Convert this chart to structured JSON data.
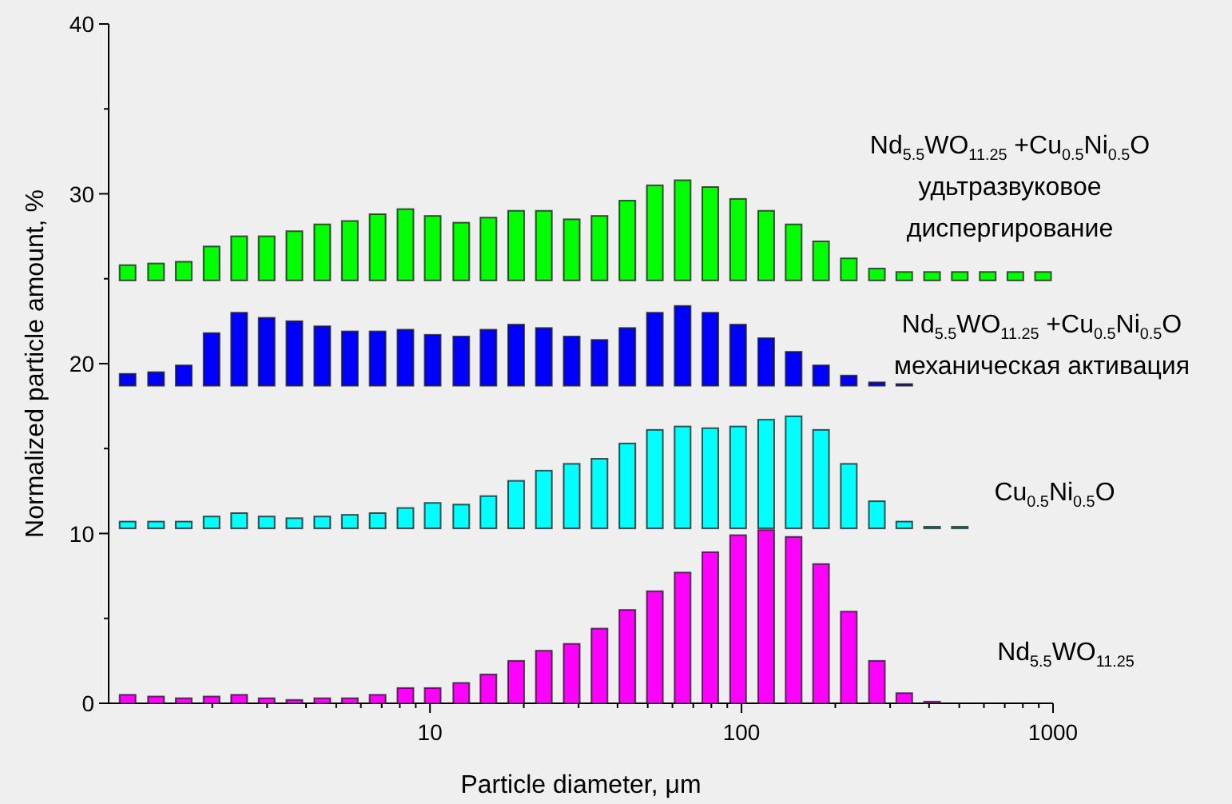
{
  "chart_data": {
    "type": "bar",
    "xlabel": "Particle diameter, μm",
    "ylabel": "Normalized particle amount, %",
    "log": "x",
    "xlim": [
      0.93,
      1000
    ],
    "ylim": [
      0,
      40
    ],
    "xticks": [
      {
        "value": 2,
        "label": null
      },
      {
        "value": 3,
        "label": null
      },
      {
        "value": 4,
        "label": null
      },
      {
        "value": 5,
        "label": null
      },
      {
        "value": 6,
        "label": null
      },
      {
        "value": 7,
        "label": null
      },
      {
        "value": 8,
        "label": null
      },
      {
        "value": 9,
        "label": null
      },
      10,
      {
        "value": 20,
        "label": null
      },
      {
        "value": 30,
        "label": null
      },
      {
        "value": 40,
        "label": null
      },
      {
        "value": 50,
        "label": null
      },
      {
        "value": 60,
        "label": null
      },
      {
        "value": 70,
        "label": null
      },
      {
        "value": 80,
        "label": null
      },
      {
        "value": 90,
        "label": null
      },
      100,
      {
        "value": 200,
        "label": null
      },
      {
        "value": 300,
        "label": null
      },
      {
        "value": 400,
        "label": null
      },
      {
        "value": 500,
        "label": null
      },
      {
        "value": 600,
        "label": null
      },
      {
        "value": 700,
        "label": null
      },
      {
        "value": 800,
        "label": null
      },
      {
        "value": 900,
        "label": null
      },
      1000
    ],
    "yticks": [
      0,
      {
        "value": 5,
        "label": null
      },
      10,
      {
        "value": 15,
        "label": null
      },
      20,
      {
        "value": 25,
        "label": null
      },
      30,
      {
        "value": 35,
        "label": null
      },
      40
    ],
    "grid": false,
    "series": [
      {
        "name": "Nd$_{5.5}$WO$_{11.25}$",
        "color": "#ff00ff",
        "x": [
          1.07,
          1.32,
          1.62,
          1.99,
          2.44,
          2.99,
          3.67,
          4.51,
          5.53,
          6.79,
          8.34,
          10.2,
          12.6,
          15.4,
          18.9,
          23.2,
          28.5,
          35.0,
          43.0,
          52.7,
          64.7,
          79.4,
          97.5,
          120,
          147,
          180,
          221,
          272,
          333,
          409
        ],
        "base": [
          0,
          0,
          0,
          0,
          0,
          0,
          0,
          0,
          0,
          0,
          0,
          0,
          0,
          0,
          0,
          0,
          0,
          0,
          0,
          0,
          0,
          0,
          0,
          0,
          0,
          0,
          0,
          0,
          0,
          0
        ],
        "values": [
          0.5,
          0.4,
          0.3,
          0.4,
          0.5,
          0.3,
          0.2,
          0.3,
          0.3,
          0.5,
          0.9,
          0.9,
          1.2,
          1.7,
          2.5,
          3.1,
          3.5,
          4.4,
          5.5,
          6.6,
          7.7,
          8.9,
          9.9,
          10.2,
          9.8,
          8.2,
          5.4,
          2.5,
          0.6,
          0.1
        ]
      },
      {
        "name": "Cu$_{0.5}$Ni$_{0.5}$O",
        "color": "#00ffff",
        "x": [
          1.07,
          1.32,
          1.62,
          1.99,
          2.44,
          2.99,
          3.67,
          4.51,
          5.53,
          6.79,
          8.34,
          10.2,
          12.6,
          15.4,
          18.9,
          23.2,
          28.5,
          35.0,
          43.0,
          52.7,
          64.7,
          79.4,
          97.5,
          120,
          147,
          180,
          221,
          272,
          333,
          409,
          502
        ],
        "base": [
          10.3,
          10.3,
          10.3,
          10.3,
          10.3,
          10.3,
          10.3,
          10.3,
          10.3,
          10.3,
          10.3,
          10.3,
          10.3,
          10.3,
          10.3,
          10.3,
          10.3,
          10.3,
          10.3,
          10.3,
          10.3,
          10.3,
          10.3,
          10.3,
          10.3,
          10.3,
          10.3,
          10.3,
          10.3,
          10.3,
          10.3
        ],
        "values": [
          0.4,
          0.4,
          0.4,
          0.7,
          0.9,
          0.7,
          0.6,
          0.7,
          0.8,
          0.9,
          1.2,
          1.5,
          1.4,
          1.9,
          2.8,
          3.4,
          3.8,
          4.1,
          5.0,
          5.8,
          6.0,
          5.9,
          6.0,
          6.4,
          6.6,
          5.8,
          3.8,
          1.6,
          0.4,
          0.1,
          0.1
        ]
      },
      {
        "name": "Nd$_{5.5}$WO$_{11.25}$ +Cu$_{0.5}$Ni$_{0.5}$O\nмеханическая активация",
        "color": "#0000ff",
        "x": [
          1.07,
          1.32,
          1.62,
          1.99,
          2.44,
          2.99,
          3.67,
          4.51,
          5.53,
          6.79,
          8.34,
          10.2,
          12.6,
          15.4,
          18.9,
          23.2,
          28.5,
          35.0,
          43.0,
          52.7,
          64.7,
          79.4,
          97.5,
          120,
          147,
          180,
          221,
          272,
          333
        ],
        "base": [
          18.7,
          18.7,
          18.7,
          18.7,
          18.7,
          18.7,
          18.7,
          18.7,
          18.7,
          18.7,
          18.7,
          18.7,
          18.7,
          18.7,
          18.7,
          18.7,
          18.7,
          18.7,
          18.7,
          18.7,
          18.7,
          18.7,
          18.7,
          18.7,
          18.7,
          18.7,
          18.7,
          18.7,
          18.7
        ],
        "values": [
          0.7,
          0.8,
          1.2,
          3.1,
          4.3,
          4.0,
          3.8,
          3.5,
          3.2,
          3.2,
          3.3,
          3.0,
          2.9,
          3.3,
          3.6,
          3.4,
          2.9,
          2.7,
          3.4,
          4.3,
          4.7,
          4.3,
          3.6,
          2.8,
          2.0,
          1.2,
          0.6,
          0.2,
          0.1
        ]
      },
      {
        "name": "Nd$_{5.5}$WO$_{11.25}$ +Cu$_{0.5}$Ni$_{0.5}$O\nудьтразвуковое\nдиспергирование",
        "color": "#00ff00",
        "x": [
          1.07,
          1.32,
          1.62,
          1.99,
          2.44,
          2.99,
          3.67,
          4.51,
          5.53,
          6.79,
          8.34,
          10.2,
          12.6,
          15.4,
          18.9,
          23.2,
          28.5,
          35.0,
          43.0,
          52.7,
          64.7,
          79.4,
          97.5,
          120,
          147,
          180,
          221,
          272,
          333,
          409,
          502,
          617,
          757,
          929
        ],
        "base": [
          24.9,
          24.9,
          24.9,
          24.9,
          24.9,
          24.9,
          24.9,
          24.9,
          24.9,
          24.9,
          24.9,
          24.9,
          24.9,
          24.9,
          24.9,
          24.9,
          24.9,
          24.9,
          24.9,
          24.9,
          24.9,
          24.9,
          24.9,
          24.9,
          24.9,
          24.9,
          24.9,
          24.9,
          24.9,
          24.9,
          24.9,
          24.9,
          24.9,
          24.9
        ],
        "values": [
          0.9,
          1.0,
          1.1,
          2.0,
          2.6,
          2.6,
          2.9,
          3.3,
          3.5,
          3.9,
          4.2,
          3.8,
          3.4,
          3.7,
          4.1,
          4.1,
          3.6,
          3.8,
          4.7,
          5.6,
          5.9,
          5.5,
          4.8,
          4.1,
          3.3,
          2.3,
          1.3,
          0.7,
          0.5,
          0.5,
          0.5,
          0.5,
          0.5,
          0.5
        ]
      }
    ]
  }
}
